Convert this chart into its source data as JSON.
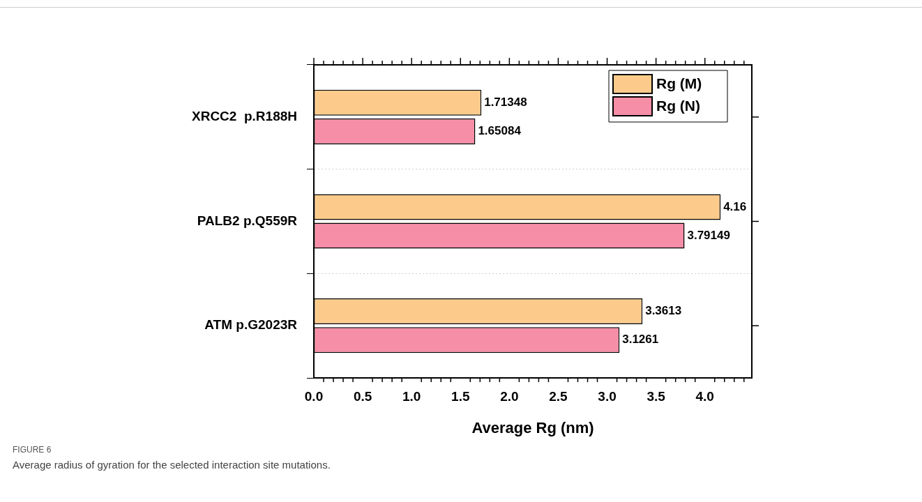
{
  "chart_data": {
    "type": "bar",
    "orientation": "horizontal",
    "xlabel": "Average Rg (nm)",
    "categories": [
      "XRCC2  p.R188H",
      "PALB2 p.Q559R",
      "ATM p.G2023R"
    ],
    "series": [
      {
        "name": "Rg (M)",
        "color": "#fccb8b",
        "values": [
          1.71348,
          4.16,
          3.3613
        ]
      },
      {
        "name": "Rg (N)",
        "color": "#f78ea7",
        "values": [
          1.65084,
          3.79149,
          3.1261
        ]
      }
    ],
    "xlim": [
      0,
      4.48
    ],
    "xticks": [
      {
        "value": 0,
        "label": "0.0"
      },
      {
        "value": 0.5,
        "label": "0.5"
      },
      {
        "value": 1,
        "label": "1.0"
      },
      {
        "value": 1.5,
        "label": "1.5"
      },
      {
        "value": 2,
        "label": "2.0"
      },
      {
        "value": 2.5,
        "label": "2.5"
      },
      {
        "value": 3,
        "label": "3.0"
      },
      {
        "value": 3.5,
        "label": "3.5"
      },
      {
        "value": 4,
        "label": "4.0"
      }
    ],
    "data_labels": true,
    "grid": "y",
    "legend": "top right",
    "annotations": [
      "FIGURE 6",
      "Average radius of gyration for the selected interaction site mutations."
    ]
  }
}
